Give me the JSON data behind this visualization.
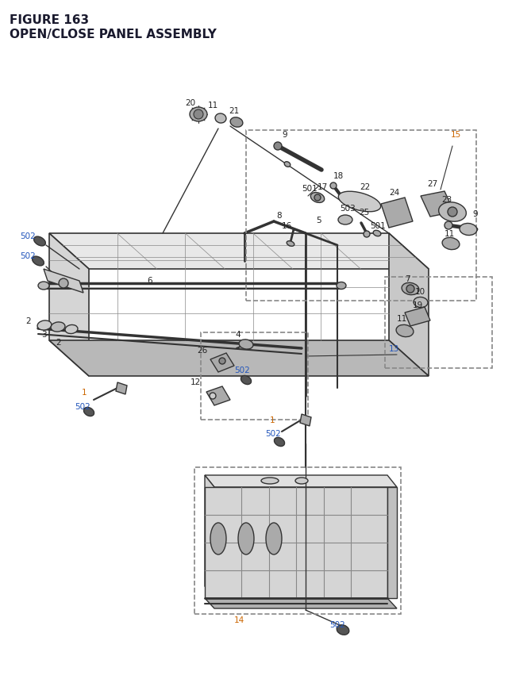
{
  "title_line1": "FIGURE 163",
  "title_line2": "OPEN/CLOSE PANEL ASSEMBLY",
  "title_color": "#1a1a2e",
  "title_fontsize": 11,
  "bg_color": "#ffffff",
  "fig_width": 6.4,
  "fig_height": 8.62,
  "orange": "#cc6600",
  "blue": "#2255bb",
  "black": "#222222",
  "gray": "#444444",
  "lgray": "#888888",
  "dgray": "#333333"
}
